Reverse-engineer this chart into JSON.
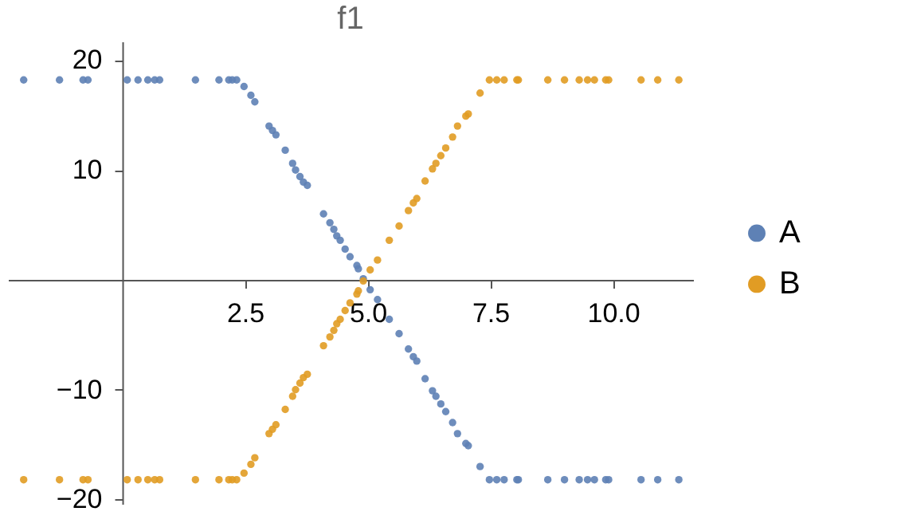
{
  "chart_data": {
    "type": "scatter",
    "title": "f1",
    "x": [
      -2.01,
      -1.28,
      -0.8,
      -0.7,
      0.1,
      0.32,
      0.52,
      0.66,
      0.76,
      1.49,
      1.97,
      2.17,
      2.24,
      2.33,
      2.48,
      2.62,
      2.7,
      2.99,
      3.06,
      3.13,
      3.32,
      3.47,
      3.53,
      3.62,
      3.69,
      3.77,
      4.1,
      4.23,
      4.31,
      4.37,
      4.44,
      4.54,
      4.64,
      4.78,
      4.81,
      4.91,
      5.05,
      5.2,
      5.44,
      5.64,
      5.83,
      5.93,
      6.0,
      6.17,
      6.32,
      6.39,
      6.49,
      6.59,
      6.73,
      6.83,
      7.0,
      7.05,
      7.29,
      7.48,
      7.63,
      7.78,
      8.04,
      8.07,
      8.67,
      9.01,
      9.31,
      9.48,
      9.62,
      9.85,
      9.91,
      10.57,
      10.91,
      11.34
    ],
    "series": [
      {
        "name": "A",
        "color": "#5e81b5",
        "values": [
          18.2,
          18.2,
          18.2,
          18.2,
          18.2,
          18.2,
          18.2,
          18.2,
          18.2,
          18.2,
          18.2,
          18.2,
          18.2,
          18.2,
          17.6,
          16.8,
          16.2,
          14.0,
          13.6,
          13.2,
          11.8,
          10.6,
          10.0,
          9.4,
          8.9,
          8.6,
          6.0,
          5.2,
          4.6,
          4.0,
          3.6,
          2.8,
          2.1,
          1.3,
          1.0,
          0.1,
          -0.9,
          -1.8,
          -3.6,
          -4.9,
          -6.3,
          -7.0,
          -7.4,
          -9.0,
          -10.1,
          -10.6,
          -11.3,
          -12.0,
          -13.0,
          -14.0,
          -14.9,
          -15.1,
          -17.0,
          -18.2,
          -18.2,
          -18.2,
          -18.2,
          -18.2,
          -18.2,
          -18.2,
          -18.2,
          -18.2,
          -18.2,
          -18.2,
          -18.2,
          -18.2,
          -18.2,
          -18.2
        ]
      },
      {
        "name": "B",
        "color": "#e19c24",
        "values": [
          -18.2,
          -18.2,
          -18.2,
          -18.2,
          -18.2,
          -18.2,
          -18.2,
          -18.2,
          -18.2,
          -18.2,
          -18.2,
          -18.2,
          -18.2,
          -18.2,
          -17.6,
          -16.8,
          -16.2,
          -14.0,
          -13.6,
          -13.2,
          -11.8,
          -10.6,
          -10.0,
          -9.4,
          -8.9,
          -8.6,
          -6.0,
          -5.2,
          -4.6,
          -4.0,
          -3.6,
          -2.8,
          -2.1,
          -1.3,
          -1.0,
          -0.1,
          0.9,
          1.8,
          3.6,
          4.9,
          6.3,
          7.0,
          7.4,
          9.0,
          10.1,
          10.6,
          11.3,
          12.0,
          13.0,
          14.0,
          14.9,
          15.1,
          17.0,
          18.2,
          18.2,
          18.2,
          18.2,
          18.2,
          18.2,
          18.2,
          18.2,
          18.2,
          18.2,
          18.2,
          18.2,
          18.2,
          18.2,
          18.2
        ]
      }
    ],
    "xlim": [
      -2.33,
      11.63
    ],
    "ylim": [
      -20.4,
      21.7
    ],
    "xticks": [
      2.5,
      {
        "value": 5,
        "label": "5.0"
      },
      7.5,
      {
        "value": 10,
        "label": "10.0"
      }
    ],
    "yticks": [
      -20,
      -10,
      10,
      20
    ],
    "grid": false,
    "legend": "right",
    "marker": "circle"
  }
}
